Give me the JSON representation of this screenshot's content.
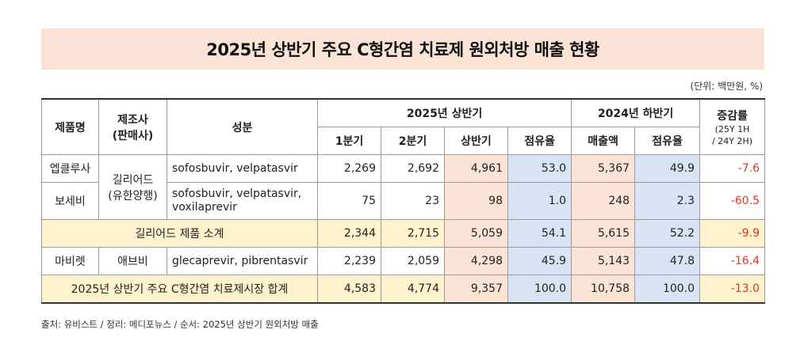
{
  "title": "2025년 상반기 주요 C형간염 치료제 원외처방 매출 현황",
  "unit": "(단위: 백만원, %)",
  "headers": {
    "product": "제품명",
    "maker_line1": "제조사",
    "maker_line2": "(판매사)",
    "ingredient": "성분",
    "h1_2025": "2025년 상반기",
    "h2_2024": "2024년 하반기",
    "change": "증감률",
    "change_sub1": "(25Y 1H",
    "change_sub2": "/ 24Y 2H)",
    "q1": "1분기",
    "q2": "2분기",
    "half": "상반기",
    "share": "점유율",
    "sales": "매출액",
    "share2": "점유율"
  },
  "rows": [
    {
      "product": "엡클루사",
      "ingredient": "sofosbuvir,  velpatasvir",
      "q1": "2,269",
      "q2": "2,692",
      "half": "4,961",
      "share": "53.0",
      "sales24": "5,367",
      "share24": "49.9",
      "change": "-7.6"
    },
    {
      "product": "보세비",
      "ingredient": "sofosbuvir,  velpatasvir,  voxilaprevir",
      "q1": "75",
      "q2": "23",
      "half": "98",
      "share": "1.0",
      "sales24": "248",
      "share24": "2.3",
      "change": "-60.5"
    }
  ],
  "gilead_maker_line1": "길리어드",
  "gilead_maker_line2": "(유한양행)",
  "subtotal": {
    "label": "길리어드 제품 소계",
    "q1": "2,344",
    "q2": "2,715",
    "half": "5,059",
    "share": "54.1",
    "sales24": "5,615",
    "share24": "52.2",
    "change": "-9.9"
  },
  "mavyret": {
    "product": "마비렛",
    "maker": "애브비",
    "ingredient": "glecaprevir,  pibrentasvir",
    "q1": "2,239",
    "q2": "2,059",
    "half": "4,298",
    "share": "45.9",
    "sales24": "5,143",
    "share24": "47.8",
    "change": "-16.4"
  },
  "total": {
    "label": "2025년 상반기 주요 C형간염 치료제시장 합계",
    "q1": "4,583",
    "q2": "4,774",
    "half": "9,357",
    "share": "100.0",
    "sales24": "10,758",
    "share24": "100.0",
    "change": "-13.0"
  },
  "footnote": "출처: 유비스트 / 정리: 메디포뉴스 / 순서: 2025년 상반기 원외처방 매출",
  "colors": {
    "title_bg": "#fbe3d6",
    "pink": "#fbe3d6",
    "blue": "#dae3f3",
    "yellow": "#fff2cc",
    "negative": "#e0352b"
  }
}
